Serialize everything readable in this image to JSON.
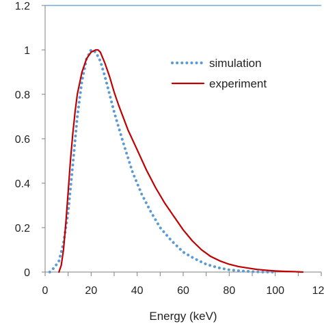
{
  "chart_data": {
    "type": "line",
    "xlabel": "Energy (keV)",
    "ylabel": "",
    "title": "",
    "xlim": [
      0,
      120
    ],
    "ylim": [
      0,
      1.2
    ],
    "x_ticks": [
      "0",
      "20",
      "40",
      "60",
      "80",
      "100",
      "120"
    ],
    "y_ticks": [
      "0",
      "0.2",
      "0.4",
      "0.6",
      "0.8",
      "1",
      "1.2"
    ],
    "grid": false,
    "legend_position": "top-right",
    "series": [
      {
        "name": "simulation",
        "style": "dotted",
        "color": "#5b9bd5",
        "x": [
          2,
          4,
          6,
          8,
          10,
          12,
          14,
          16,
          18,
          20,
          22,
          24,
          26,
          28,
          30,
          34,
          38,
          42,
          46,
          50,
          55,
          60,
          65,
          70,
          75,
          80,
          85,
          90,
          95,
          100
        ],
        "y": [
          0.0,
          0.02,
          0.05,
          0.13,
          0.27,
          0.48,
          0.7,
          0.86,
          0.96,
          1.0,
          0.99,
          0.95,
          0.88,
          0.8,
          0.72,
          0.58,
          0.45,
          0.35,
          0.27,
          0.2,
          0.14,
          0.09,
          0.06,
          0.035,
          0.02,
          0.01,
          0.005,
          0.002,
          0.0,
          0.0
        ]
      },
      {
        "name": "experiment",
        "style": "solid",
        "color": "#c00000",
        "x": [
          6,
          7,
          8,
          9,
          10,
          11,
          12,
          13,
          14,
          16,
          18,
          20,
          22,
          23,
          24,
          26,
          28,
          30,
          32,
          36,
          40,
          44,
          48,
          52,
          56,
          60,
          64,
          68,
          72,
          76,
          80,
          84,
          88,
          92,
          96,
          100,
          104,
          108,
          112
        ],
        "y": [
          0.0,
          0.03,
          0.1,
          0.22,
          0.36,
          0.5,
          0.62,
          0.72,
          0.8,
          0.9,
          0.96,
          0.99,
          1.0,
          1.0,
          0.99,
          0.94,
          0.88,
          0.81,
          0.75,
          0.64,
          0.55,
          0.46,
          0.38,
          0.31,
          0.25,
          0.19,
          0.14,
          0.1,
          0.07,
          0.05,
          0.035,
          0.025,
          0.018,
          0.012,
          0.008,
          0.005,
          0.003,
          0.002,
          0.0
        ]
      }
    ]
  }
}
